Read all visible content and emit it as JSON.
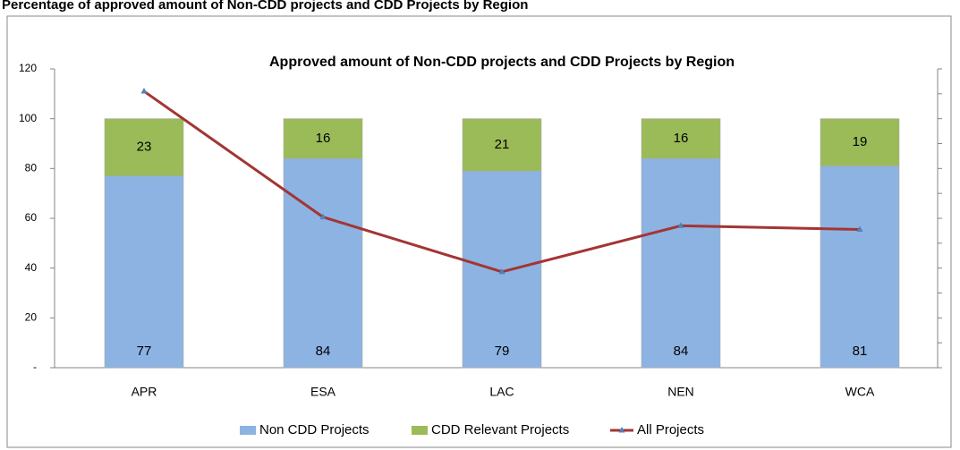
{
  "header": "Percentage of approved amount of Non-CDD projects and CDD Projects by Region",
  "chart_data": {
    "type": "bar",
    "stacked": true,
    "title": "Approved amount of Non-CDD projects and CDD Projects by Region",
    "categories": [
      "APR",
      "ESA",
      "LAC",
      "NEN",
      "WCA"
    ],
    "series": [
      {
        "name": "Non CDD Projects",
        "type": "bar",
        "color": "#8db3e2",
        "values": [
          77,
          84,
          79,
          84,
          81
        ]
      },
      {
        "name": "CDD Relevant Projects",
        "type": "bar",
        "color": "#9bbb59",
        "values": [
          23,
          16,
          21,
          16,
          19
        ]
      },
      {
        "name": "All Projects",
        "type": "line",
        "color": "#a33533",
        "values": [
          111,
          60.5,
          38.5,
          57,
          55.5
        ]
      }
    ],
    "ylim": [
      0,
      120
    ],
    "yticks": [
      {
        "value": 0,
        "label": "-"
      },
      20,
      40,
      60,
      80,
      100,
      120
    ],
    "legend": "bottom"
  }
}
